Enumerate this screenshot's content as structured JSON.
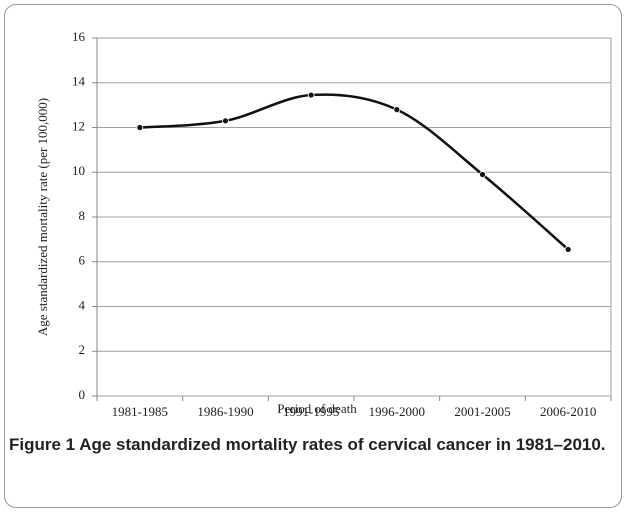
{
  "chart_data": {
    "type": "line",
    "categories": [
      "1981-1985",
      "1986-1990",
      "1991-1995",
      "1996-2000",
      "2001-2005",
      "2006-2010"
    ],
    "series": [
      {
        "name": "Age standardized mortality rate",
        "color": "#111111",
        "values": [
          12.0,
          12.3,
          13.45,
          12.8,
          9.9,
          6.55
        ]
      }
    ],
    "ylim": [
      0,
      16
    ],
    "yticks": [
      0,
      2,
      4,
      6,
      8,
      10,
      12,
      14,
      16
    ],
    "grid": true,
    "smooth": true,
    "x_label": "Period of death",
    "y_label": "Age standardized mortality rate (per 100,000)",
    "caption_label": "Figure 1",
    "caption": "Age standardized mortality rates of cervical cancer in 1981–2010."
  }
}
